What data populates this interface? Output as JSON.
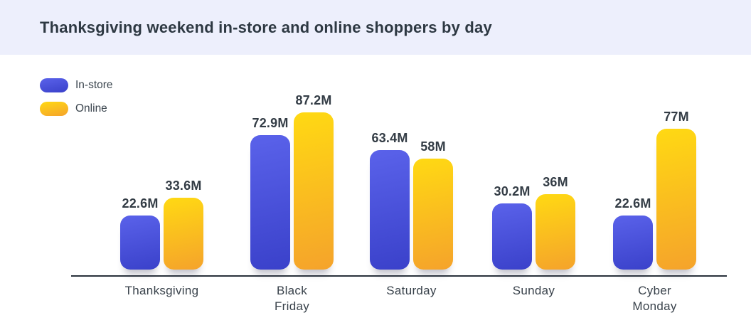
{
  "header": {
    "title": "Thanksgiving weekend in-store and online shoppers by day"
  },
  "legend": {
    "items": [
      {
        "label": "In-store"
      },
      {
        "label": "Online"
      }
    ]
  },
  "chart_data": {
    "type": "bar",
    "title": "Thanksgiving weekend in-store and online shoppers by day",
    "categories": [
      "Thanksgiving",
      "Black Friday",
      "Saturday",
      "Sunday",
      "Cyber Monday"
    ],
    "tick_labels": [
      "Thanksgiving",
      "Black\nFriday",
      "Saturday",
      "Sunday",
      "Cyber\nMonday"
    ],
    "unit": "M (millions of shoppers)",
    "series": [
      {
        "name": "In-store",
        "values": [
          22.6,
          72.9,
          63.4,
          30.2,
          22.6
        ],
        "data_labels": [
          "22.6M",
          "72.9M",
          "63.4M",
          "30.2M",
          "22.6M"
        ],
        "color_top": "#5a62ea",
        "color_bottom": "#3a41ca"
      },
      {
        "name": "Online",
        "values": [
          33.6,
          87.2,
          58,
          36,
          77
        ],
        "data_labels": [
          "33.6M",
          "87.2M",
          "58M",
          "36M",
          "77M"
        ],
        "color_top": "#ffd913",
        "color_bottom": "#f5a32b"
      }
    ],
    "ylim": [
      0,
      90
    ],
    "grid": false,
    "legend_position": "top-left",
    "colors": {
      "header_bg": "#edeffc",
      "title_text": "#2d3842",
      "axis": "#2a323c",
      "tick_label": "#39424b",
      "value_label": "#333c45"
    }
  }
}
